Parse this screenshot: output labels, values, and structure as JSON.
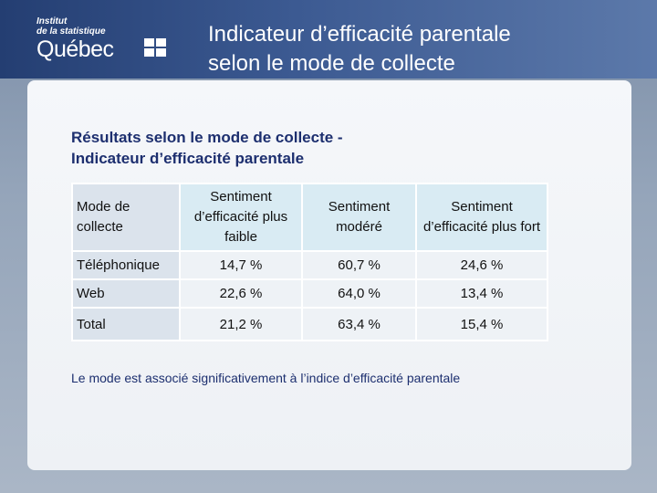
{
  "header": {
    "logo": [
      "Institut",
      "de la statistique",
      "Québec"
    ],
    "title": [
      "Indicateur d’efficacité parentale",
      "selon le mode de collecte"
    ]
  },
  "heading": [
    "Résultats selon le mode de collecte -",
    "Indicateur d’efficacité parentale"
  ],
  "table": {
    "columns": [
      "Mode de collecte",
      "Sentiment d’efficacité plus faible",
      "Sentiment modéré",
      "Sentiment d’efficacité plus fort"
    ],
    "rows": [
      [
        "Téléphonique",
        "14,7 %",
        "60,7 %",
        "24,6 %"
      ],
      [
        "Web",
        "22,6 %",
        "64,0 %",
        "13,4 %"
      ],
      [
        "Total",
        "21,2 %",
        "63,4 %",
        "15,4 %"
      ]
    ]
  },
  "note": "Le mode est associé significativement à l’indice d’efficacité parentale"
}
